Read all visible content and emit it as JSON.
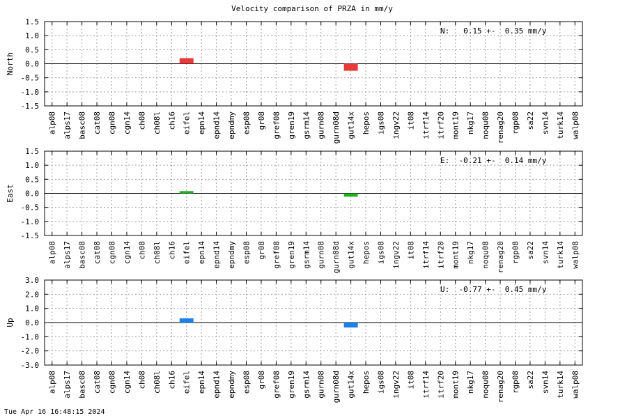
{
  "chart_data": [
    {
      "type": "bar",
      "title": "Velocity comparison of PRZA in mm/y",
      "ylabel": "North",
      "ylim": [
        -1.5,
        1.5
      ],
      "yticks": [
        "1.5",
        "1.0",
        "0.5",
        "0.0",
        "-0.5",
        "-1.0",
        "-1.5"
      ],
      "grid": true,
      "categories": [
        "alp08",
        "alps17",
        "basc08",
        "cat08",
        "cgn08",
        "cgn14",
        "ch08",
        "ch08l",
        "ch16",
        "eifel",
        "epn14",
        "epnd14",
        "epndmy",
        "esp08",
        "gr08",
        "gref08",
        "gren19",
        "gsrm14",
        "gurn08",
        "gurn08d",
        "gut14x",
        "hepos",
        "igs08",
        "ingv22",
        "it08",
        "itrf14",
        "itrf20",
        "mont19",
        "nkg17",
        "noqu08",
        "renag20",
        "rgp08",
        "sa22",
        "svn14",
        "turk14",
        "walp08"
      ],
      "series": [
        {
          "color": "#e83a3a",
          "bars": [
            {
              "category": "eifel",
              "value": 0.2
            },
            {
              "category": "gut14x",
              "value": -0.25
            }
          ]
        }
      ],
      "annotation": "N:   0.15 +-  0.35 mm/y"
    },
    {
      "type": "bar",
      "title": "",
      "ylabel": "East",
      "ylim": [
        -1.5,
        1.5
      ],
      "yticks": [
        "1.5",
        "1.0",
        "0.5",
        "0.0",
        "-0.5",
        "-1.0",
        "-1.5"
      ],
      "grid": true,
      "categories": [
        "alp08",
        "alps17",
        "basc08",
        "cat08",
        "cgn08",
        "cgn14",
        "ch08",
        "ch08l",
        "ch16",
        "eifel",
        "epn14",
        "epnd14",
        "epndmy",
        "esp08",
        "gr08",
        "gref08",
        "gren19",
        "gsrm14",
        "gurn08",
        "gurn08d",
        "gut14x",
        "hepos",
        "igs08",
        "ingv22",
        "it08",
        "itrf14",
        "itrf20",
        "mont19",
        "nkg17",
        "noqu08",
        "renag20",
        "rgp08",
        "sa22",
        "svn14",
        "turk14",
        "walp08"
      ],
      "series": [
        {
          "color": "#22b022",
          "bars": [
            {
              "category": "eifel",
              "value": 0.08
            },
            {
              "category": "gut14x",
              "value": -0.12
            }
          ]
        }
      ],
      "annotation": "E:  -0.21 +-  0.14 mm/y"
    },
    {
      "type": "bar",
      "title": "",
      "ylabel": "Up",
      "ylim": [
        -3.0,
        3.0
      ],
      "yticks": [
        "3.0",
        "2.0",
        "1.0",
        "0.0",
        "-1.0",
        "-2.0",
        "-3.0"
      ],
      "grid": true,
      "categories": [
        "alp08",
        "alps17",
        "basc08",
        "cat08",
        "cgn08",
        "cgn14",
        "ch08",
        "ch08l",
        "ch16",
        "eifel",
        "epn14",
        "epnd14",
        "epndmy",
        "esp08",
        "gr08",
        "gref08",
        "gren19",
        "gsrm14",
        "gurn08",
        "gurn08d",
        "gut14x",
        "hepos",
        "igs08",
        "ingv22",
        "it08",
        "itrf14",
        "itrf20",
        "mont19",
        "nkg17",
        "noqu08",
        "renag20",
        "rgp08",
        "sa22",
        "svn14",
        "turk14",
        "walp08"
      ],
      "series": [
        {
          "color": "#1a82e8",
          "bars": [
            {
              "category": "eifel",
              "value": 0.3
            },
            {
              "category": "gut14x",
              "value": -0.35
            }
          ]
        }
      ],
      "annotation": "U:  -0.77 +-  0.45 mm/y"
    }
  ],
  "footer": {
    "timestamp": "Tue Apr 16 16:48:15 2024"
  }
}
